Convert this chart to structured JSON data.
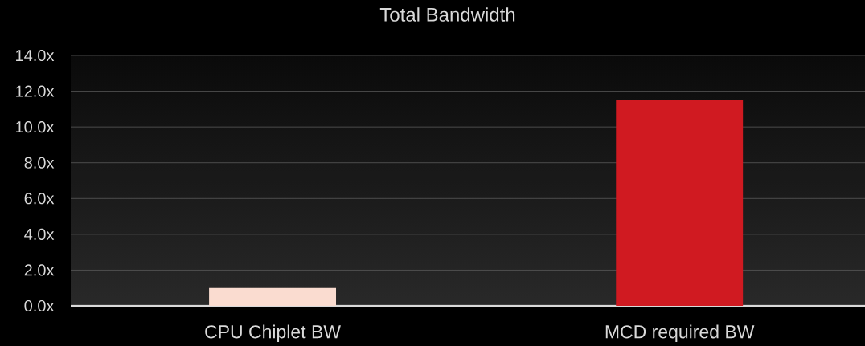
{
  "chart_data": {
    "type": "bar",
    "title": "Total Bandwidth",
    "categories": [
      "CPU Chiplet BW",
      "MCD required BW"
    ],
    "values": [
      1.0,
      11.5
    ],
    "colors": [
      "#fadcd0",
      "#d01a21"
    ],
    "ylim": [
      0,
      14
    ],
    "yticks": [
      {
        "value": 0,
        "label": "0.0x"
      },
      {
        "value": 2,
        "label": "2.0x"
      },
      {
        "value": 4,
        "label": "4.0x"
      },
      {
        "value": 6,
        "label": "6.0x"
      },
      {
        "value": 8,
        "label": "8.0x"
      },
      {
        "value": 10,
        "label": "10.0x"
      },
      {
        "value": 12,
        "label": "12.0x"
      },
      {
        "value": 14,
        "label": "14.0x"
      }
    ],
    "grid": "y"
  }
}
